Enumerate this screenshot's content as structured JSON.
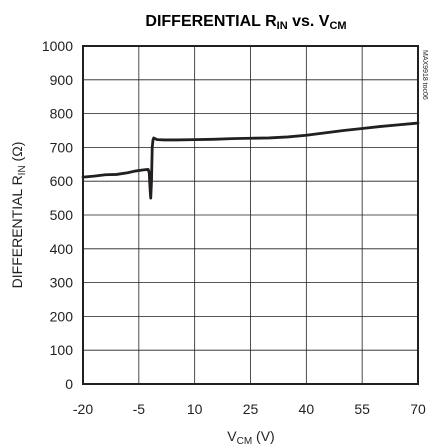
{
  "chart_data": {
    "type": "line",
    "title": {
      "main": "DIFFERENTIAL R",
      "sub": "IN",
      "mid": " vs. V",
      "sub2": "CM"
    },
    "xlabel": {
      "main": "V",
      "sub": "CM",
      "unit": " (V)"
    },
    "ylabel": {
      "main": "DIFFERENTIAL R",
      "sub": "IN",
      "unit": " (Ω)"
    },
    "xlim": [
      -20,
      70
    ],
    "ylim": [
      0,
      1000
    ],
    "xticks": [
      -20,
      -5,
      10,
      25,
      40,
      55,
      70
    ],
    "xtick_labels": [
      "-20",
      "-5",
      "10",
      "25",
      "40",
      "55",
      "70"
    ],
    "yticks": [
      0,
      100,
      200,
      300,
      400,
      500,
      600,
      700,
      800,
      900,
      1000
    ],
    "ytick_labels": [
      "0",
      "100",
      "200",
      "300",
      "400",
      "500",
      "600",
      "700",
      "800",
      "900",
      "1000"
    ],
    "grid": true,
    "annotation": "MAX9918 toc06",
    "series": [
      {
        "x": [
          -20,
          -17,
          -14,
          -11,
          -8,
          -6,
          -4,
          -2.5,
          -2.2,
          -2.0,
          -1.8,
          -1.6,
          -1.4,
          -1.2,
          -1.0,
          -0.5,
          0,
          2,
          5,
          10,
          15,
          20,
          25,
          30,
          35,
          40,
          45,
          50,
          55,
          60,
          65,
          70
        ],
        "y": [
          612,
          615,
          619,
          620,
          625,
          630,
          633,
          635,
          625,
          580,
          550,
          600,
          700,
          722,
          728,
          725,
          723,
          722,
          722,
          723,
          724,
          726,
          727,
          728,
          731,
          736,
          743,
          750,
          756,
          762,
          767,
          772
        ]
      }
    ]
  }
}
